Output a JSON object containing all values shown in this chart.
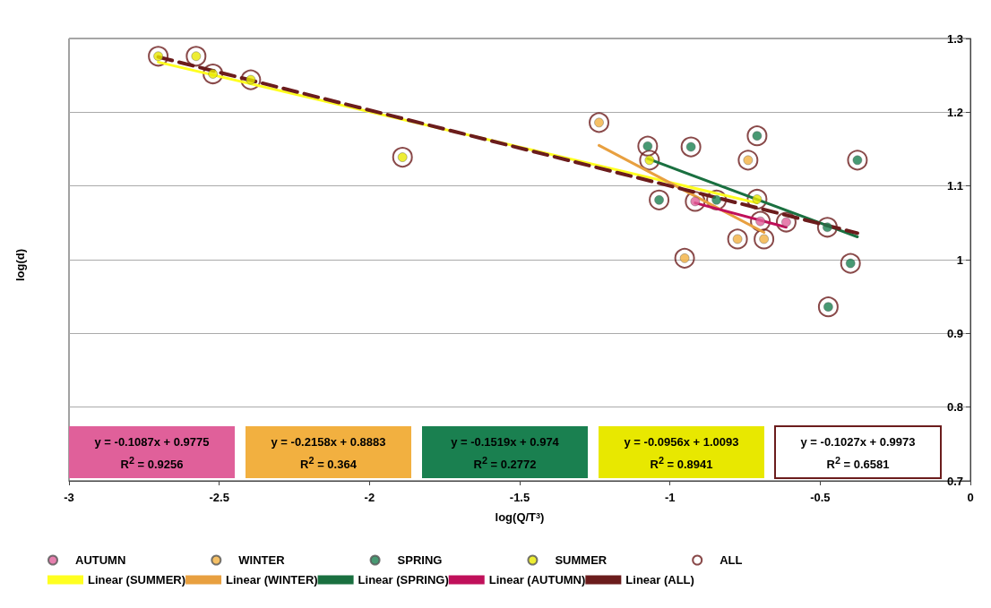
{
  "chart_data": {
    "type": "scatter",
    "xlabel": "log(Q/T$^{3}$)",
    "ylabel": "log(d)",
    "xlim": [
      -3,
      0
    ],
    "ylim": [
      0.7,
      1.3
    ],
    "xticks": [
      -3,
      -2.5,
      -2,
      -1.5,
      -1,
      -0.5,
      0
    ],
    "yticks": [
      0.7,
      0.8,
      0.9,
      1,
      1.1,
      1.2,
      1.3
    ],
    "grid": "y",
    "legend": "bottom",
    "series": [
      {
        "name": "AUTUMN",
        "marker": "circle",
        "color": "#e0609a",
        "x": [
          -0.916,
          -0.699,
          -0.613
        ],
        "values": [
          1.079,
          1.052,
          1.051
        ]
      },
      {
        "name": "WINTER",
        "marker": "circle",
        "color": "#f2b040",
        "x": [
          -1.236,
          -0.74,
          -0.775,
          -0.687,
          -0.951
        ],
        "values": [
          1.186,
          1.135,
          1.028,
          1.028,
          1.002
        ]
      },
      {
        "name": "SPRING",
        "marker": "circle",
        "color": "#1a8050",
        "x": [
          -1.074,
          -0.93,
          -0.71,
          -0.376,
          -1.036,
          -0.845,
          -0.476,
          -0.399,
          -0.473
        ],
        "values": [
          1.154,
          1.153,
          1.168,
          1.135,
          1.081,
          1.081,
          1.044,
          0.995,
          0.936
        ]
      },
      {
        "name": "SUMMER",
        "marker": "circle",
        "color": "#e8e800",
        "x": [
          -2.703,
          -2.577,
          -2.521,
          -2.395,
          -1.89,
          -1.068,
          -0.71
        ],
        "values": [
          1.276,
          1.276,
          1.252,
          1.244,
          1.139,
          1.135,
          1.082
        ]
      },
      {
        "name": "ALL",
        "marker": "circle",
        "color": "#6b1c1c",
        "x": [
          -0.916,
          -0.699,
          -0.613,
          -1.236,
          -0.74,
          -0.775,
          -0.687,
          -0.951,
          -1.074,
          -0.93,
          -0.71,
          -0.376,
          -1.036,
          -0.845,
          -0.476,
          -0.399,
          -0.473,
          -2.703,
          -2.577,
          -2.521,
          -2.395,
          -1.89,
          -1.068,
          -0.71
        ],
        "values": [
          1.079,
          1.052,
          1.051,
          1.186,
          1.135,
          1.028,
          1.028,
          1.002,
          1.154,
          1.153,
          1.168,
          1.135,
          1.081,
          1.081,
          1.044,
          0.995,
          0.936,
          1.276,
          1.276,
          1.252,
          1.244,
          1.139,
          1.135,
          1.082
        ]
      },
      {
        "name": "Linear (SUMMER)",
        "type": "line",
        "color": "#ffff20",
        "x": [
          -2.703,
          -0.71
        ],
        "values": [
          1.268,
          1.077
        ]
      },
      {
        "name": "Linear (WINTER)",
        "type": "line",
        "color": "#e8a040",
        "x": [
          -1.236,
          -0.687
        ],
        "values": [
          1.155,
          1.037
        ]
      },
      {
        "name": "Linear (SPRING)",
        "type": "line",
        "color": "#1a7040",
        "x": [
          -1.074,
          -0.376
        ],
        "values": [
          1.137,
          1.031
        ]
      },
      {
        "name": "Linear (AUTUMN)",
        "type": "line",
        "color": "#c0105a",
        "x": [
          -0.916,
          -0.613
        ],
        "values": [
          1.077,
          1.044
        ]
      },
      {
        "name": "Linear (ALL)",
        "type": "line",
        "color": "#6b1c1c",
        "line_style": "dashed",
        "x": [
          -2.703,
          -0.376
        ],
        "values": [
          1.275,
          1.036
        ]
      }
    ],
    "annotations": [
      "y = -0.1087x + 0.9775\nR$^{2}$ = 0.9256",
      "y = -0.2158x + 0.8883\nR$^{2}$ = 0.364",
      "y = -0.1519x + 0.974\nR$^{2}$ = 0.2772",
      "y = -0.0956x + 1.0093\nR$^{2}$ = 0.8941",
      "y = -0.1027x + 0.9973\nR$^{2}$ = 0.6581"
    ]
  }
}
